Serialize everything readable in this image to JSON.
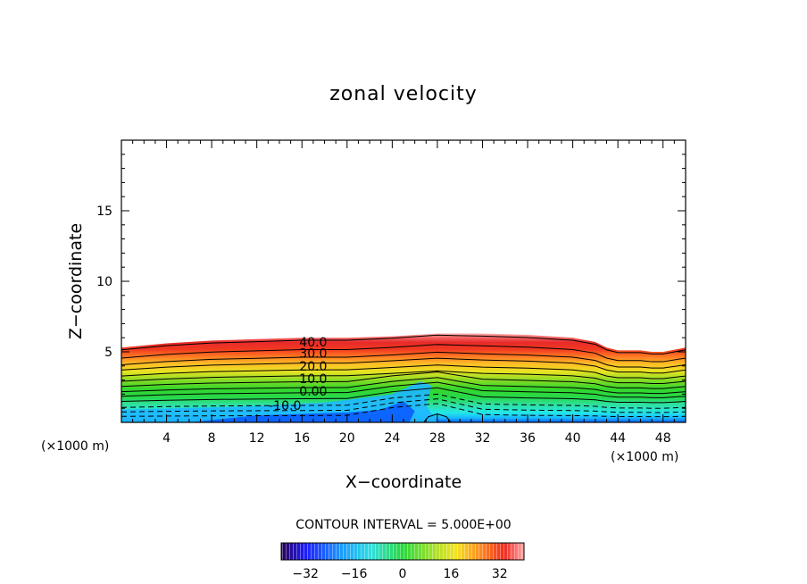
{
  "chart_data": {
    "type": "contour",
    "title": "zonal velocity",
    "xlabel": "X−coordinate",
    "ylabel": "Z−coordinate",
    "x_unit_note": "(×1000 m)",
    "y_unit_note": "(×1000 m)",
    "xlim": [
      0,
      50
    ],
    "ylim": [
      0,
      20
    ],
    "x_ticks": [
      4,
      8,
      12,
      16,
      20,
      24,
      28,
      32,
      36,
      40,
      44,
      48
    ],
    "y_ticks": [
      5,
      10,
      15
    ],
    "contour_interval_text": "CONTOUR INTERVAL = 5.000E+00",
    "contour_interval": 5.0,
    "contour_labels": [
      {
        "text": "40.0",
        "x": 17,
        "z": 5.7
      },
      {
        "text": "30.0",
        "x": 17,
        "z": 4.9
      },
      {
        "text": "20.0",
        "x": 17,
        "z": 4.0
      },
      {
        "text": "10.0",
        "x": 17,
        "z": 3.1
      },
      {
        "text": "0.00",
        "x": 17,
        "z": 2.2
      },
      {
        "text": "-10.0",
        "x": 14.5,
        "z": 1.2
      }
    ],
    "colorbar": {
      "min": -40,
      "max": 40,
      "ticks": [
        "−32",
        "−16",
        "0",
        "16",
        "32"
      ],
      "tick_values": [
        -32,
        -16,
        0,
        16,
        32
      ],
      "colormap": "rainbow (dark blue → cyan → green → yellow → red → pink)"
    },
    "top_of_jet_profile": {
      "x": [
        0,
        4,
        8,
        12,
        16,
        20,
        24,
        28,
        32,
        36,
        40,
        42,
        43,
        44,
        46,
        47,
        48,
        50
      ],
      "z": [
        5.3,
        5.6,
        5.8,
        5.9,
        6.0,
        6.0,
        6.1,
        6.3,
        6.3,
        6.2,
        6.0,
        5.7,
        5.3,
        5.1,
        5.1,
        5.0,
        5.0,
        5.3
      ]
    }
  }
}
